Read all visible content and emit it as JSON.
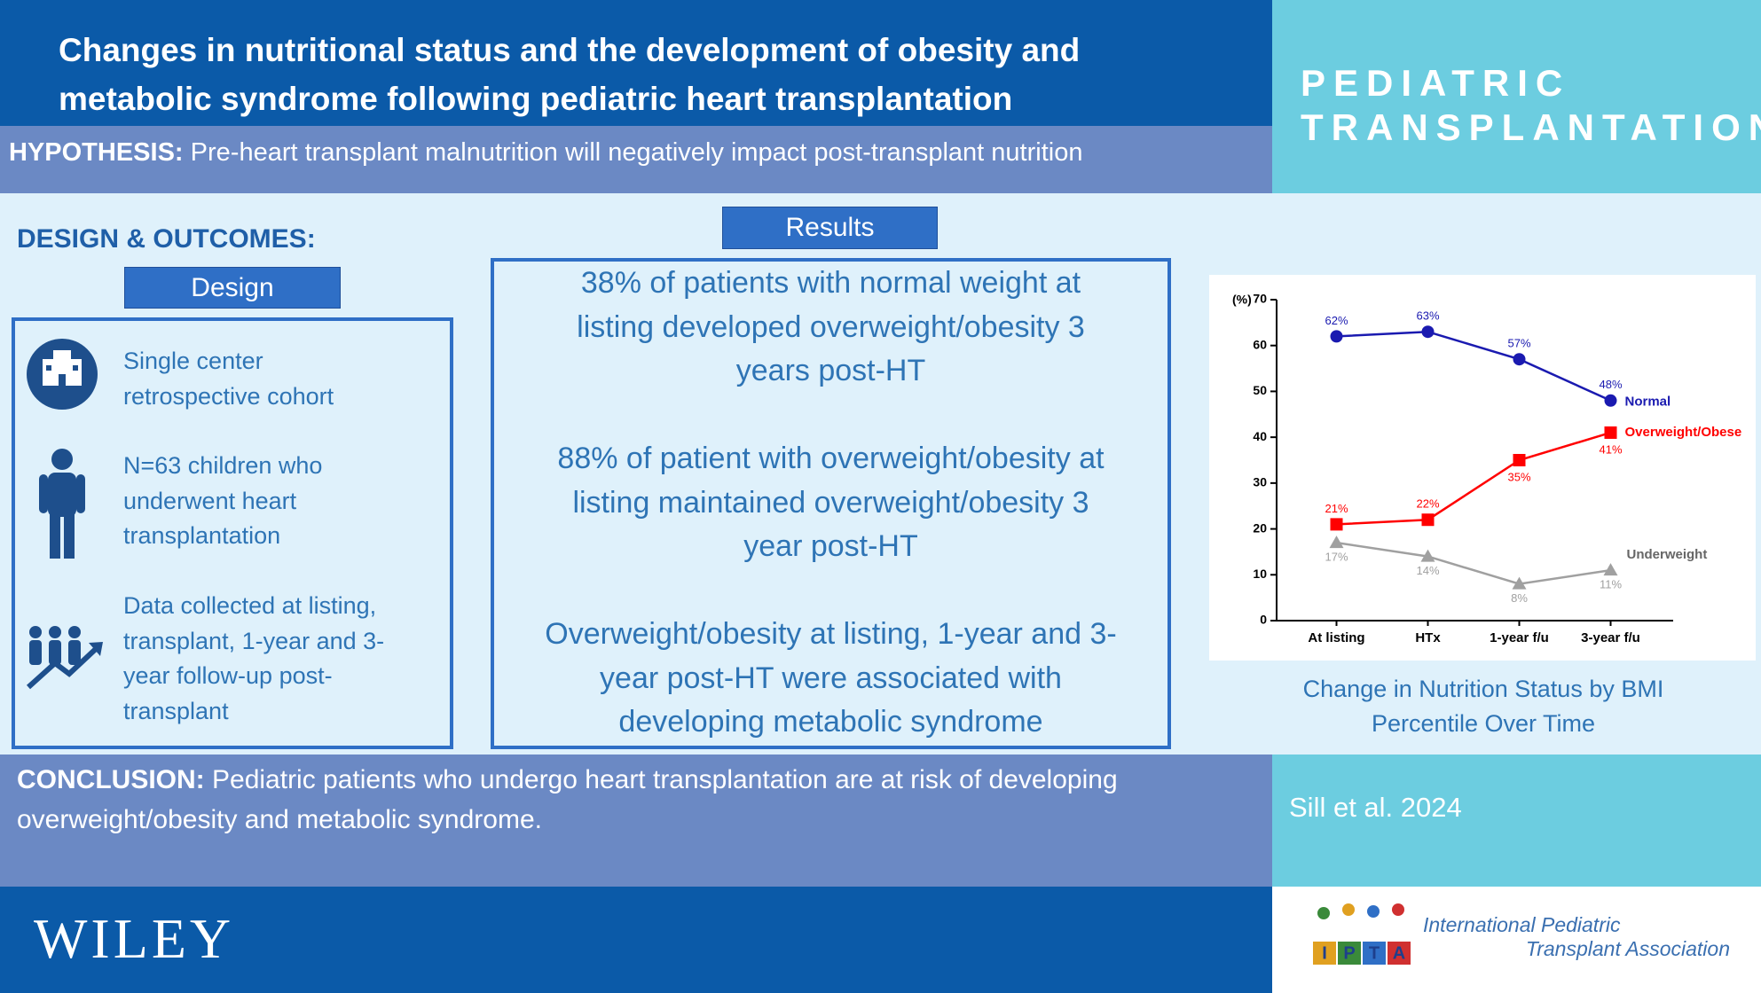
{
  "header": {
    "title_lines": [
      "Changes in nutritional status and the development of obesity and",
      "metabolic syndrome following pediatric heart transplantation"
    ],
    "journal_lines": [
      "PEDIATRIC",
      "TRANSPLANTATION"
    ]
  },
  "hypothesis": {
    "label": "HYPOTHESIS:",
    "text": "Pre-heart transplant malnutrition will negatively impact post-transplant nutrition"
  },
  "design": {
    "heading": "DESIGN & OUTCOMES:",
    "button": "Design",
    "items": [
      {
        "lines": [
          "Single center",
          "retrospective  cohort"
        ]
      },
      {
        "lines": [
          "N=63 children who",
          "underwent  heart",
          "transplantation"
        ]
      },
      {
        "lines": [
          "Data collected at listing,",
          "transplant, 1-year and 3-",
          "year follow-up post-",
          "transplant"
        ]
      }
    ]
  },
  "results": {
    "button": "Results",
    "paragraphs": [
      {
        "lines": [
          "38% of patients with normal weight at",
          "listing developed overweight/obesity 3",
          "years post-HT"
        ]
      },
      {
        "lines": [
          "88% of patient with overweight/obesity at",
          "listing maintained overweight/obesity 3",
          "year post-HT"
        ]
      },
      {
        "lines": [
          "Overweight/obesity at listing, 1-year and 3-",
          "year post-HT were associated with",
          "developing metabolic syndrome"
        ]
      }
    ]
  },
  "chart_data": {
    "type": "line",
    "y_label": "(%)",
    "caption_lines": [
      "Change in Nutrition Status by BMI",
      "Percentile Over Time"
    ],
    "categories": [
      "At listing",
      "HTx",
      "1-year f/u",
      "3-year f/u"
    ],
    "ylim": [
      0,
      70
    ],
    "yticks": [
      0,
      10,
      20,
      30,
      40,
      50,
      60,
      70
    ],
    "series": [
      {
        "name": "Normal",
        "color": "#1a1ab0",
        "marker": "circle",
        "values": [
          62,
          63,
          57,
          48
        ],
        "value_labels": [
          "62%",
          "63%",
          "57%",
          "48%"
        ]
      },
      {
        "name": "Overweight/Obese",
        "color": "#ff0000",
        "marker": "square",
        "values": [
          21,
          22,
          35,
          41
        ],
        "value_labels": [
          "21%",
          "22%",
          "35%",
          "41%"
        ]
      },
      {
        "name": "Underweight",
        "color": "#a0a0a0",
        "marker": "triangle",
        "values": [
          17,
          14,
          8,
          11
        ],
        "value_labels": [
          "17%",
          "14%",
          "8%",
          "11%"
        ]
      }
    ]
  },
  "conclusion": {
    "label": "CONCLUSION:",
    "text": "Pediatric patients who undergo heart transplantation are at risk of developing",
    "text_line2": "overweight/obesity and metabolic syndrome."
  },
  "citation": "Sill et al. 2024",
  "footer": {
    "publisher": "WILEY",
    "association_lines": [
      "International Pediatric",
      "Transplant Association"
    ],
    "logo_letters": [
      "I",
      "P",
      "T",
      "A"
    ]
  }
}
